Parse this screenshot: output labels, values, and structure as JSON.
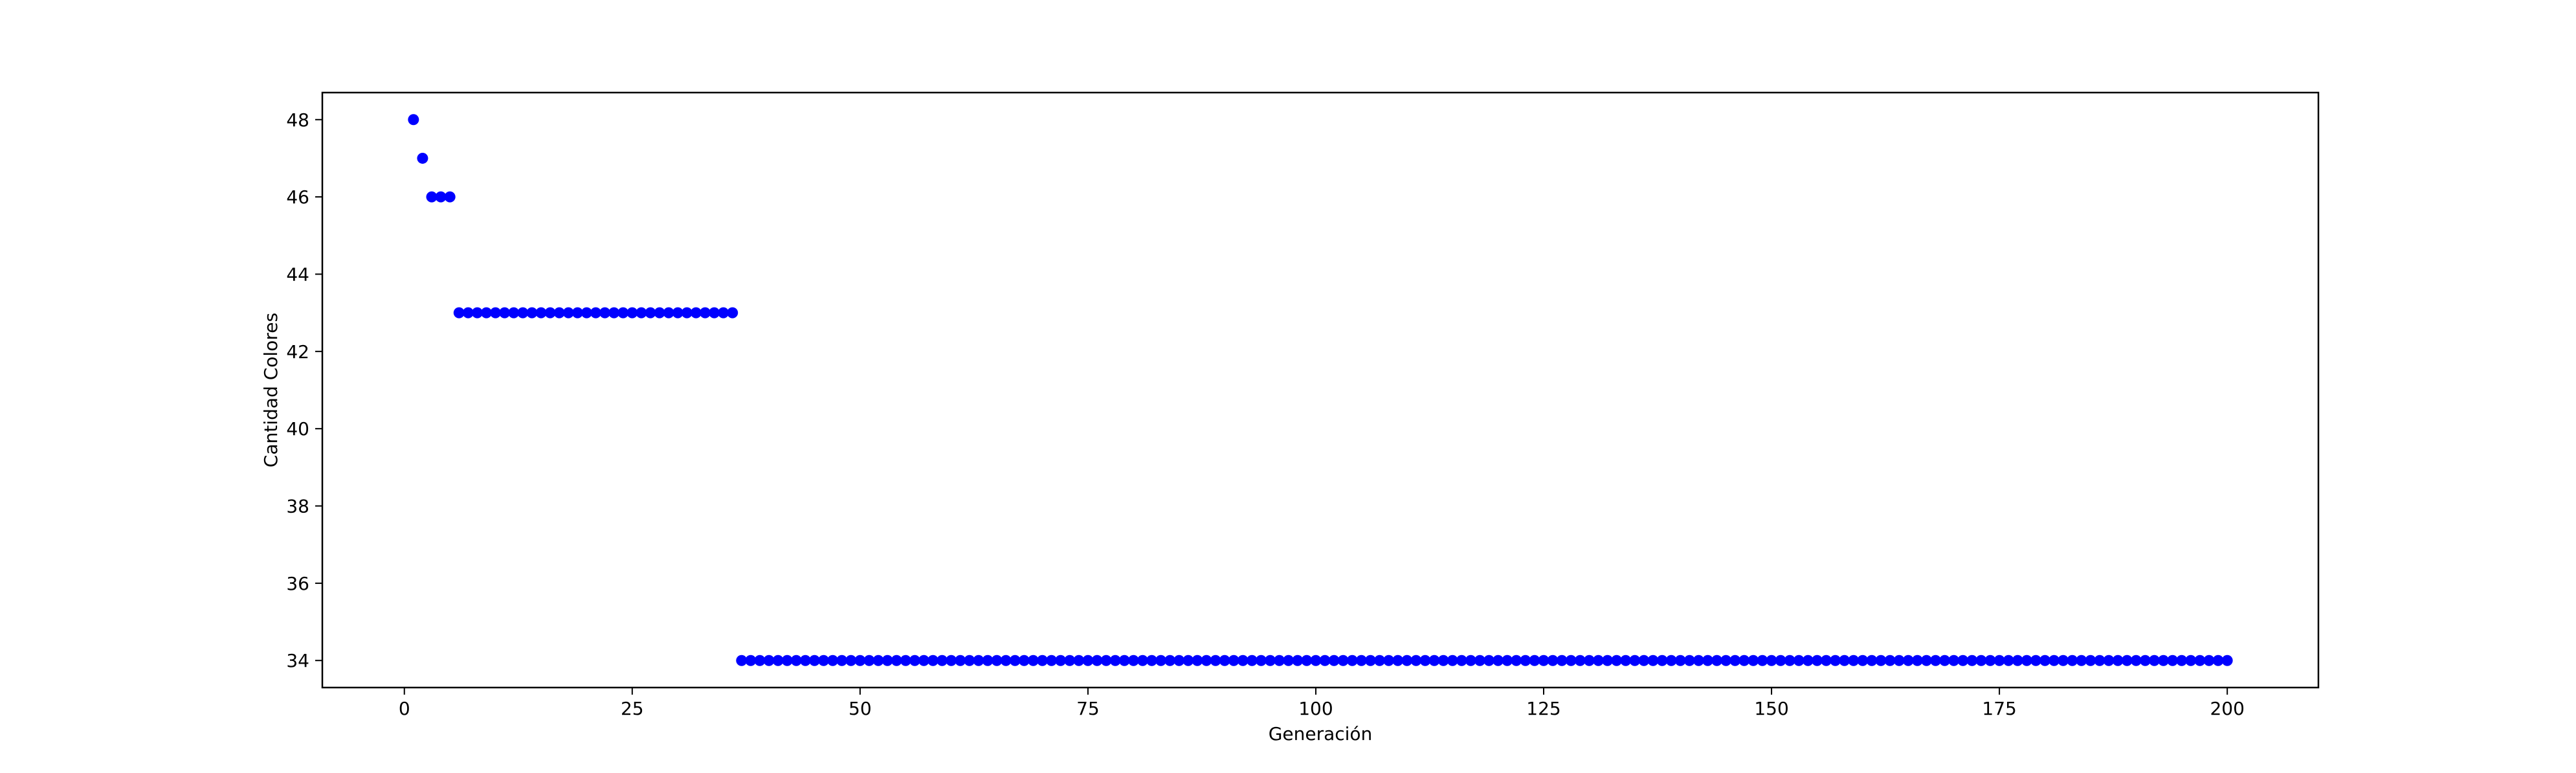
{
  "chart_data": {
    "type": "scatter",
    "title": "",
    "xlabel": "Generación",
    "ylabel": "Cantidad Colores",
    "xlim": [
      -9,
      210
    ],
    "ylim": [
      33.3,
      48.7
    ],
    "xticks": [
      0,
      25,
      50,
      75,
      100,
      125,
      150,
      175,
      200
    ],
    "yticks": [
      34,
      36,
      38,
      40,
      42,
      44,
      46,
      48
    ],
    "grid": false,
    "legend": "none",
    "marker_color": "#0000ff",
    "segments": [
      {
        "x_start": 1,
        "x_end": 1,
        "y": 48
      },
      {
        "x_start": 2,
        "x_end": 2,
        "y": 47
      },
      {
        "x_start": 3,
        "x_end": 5,
        "y": 46
      },
      {
        "x_start": 6,
        "x_end": 36,
        "y": 43
      },
      {
        "x_start": 37,
        "x_end": 200,
        "y": 34
      }
    ]
  }
}
